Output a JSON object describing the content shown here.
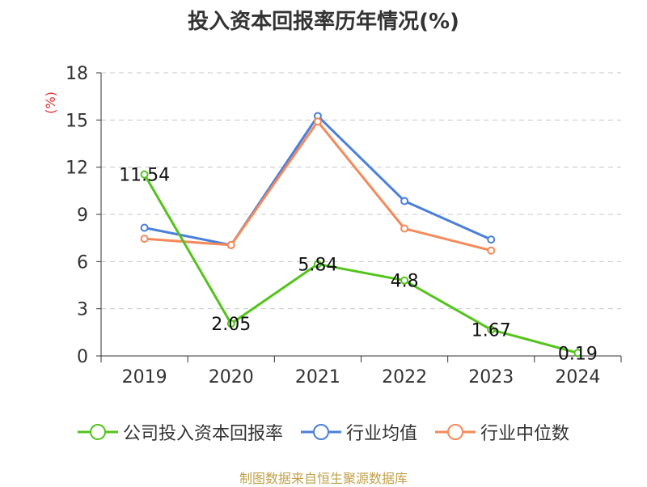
{
  "chart_data": {
    "type": "line",
    "title": "投入资本回报率历年情况(%)",
    "ylabel": "(%)",
    "xlabel": "",
    "categories": [
      "2019",
      "2020",
      "2021",
      "2022",
      "2023",
      "2024"
    ],
    "ylim": [
      0,
      18
    ],
    "yticks": [
      0,
      3,
      6,
      9,
      12,
      15,
      18
    ],
    "grid": true,
    "legend_position": "bottom",
    "series": [
      {
        "name": "公司投入资本回报率",
        "color": "#52c41a",
        "values": [
          11.54,
          2.05,
          5.84,
          4.8,
          1.67,
          0.19
        ],
        "labels": [
          "11.54",
          "2.05",
          "5.84",
          "4.8",
          "1.67",
          "0.19"
        ]
      },
      {
        "name": "行业均值",
        "color": "#4a7fdc",
        "values": [
          8.15,
          7.05,
          15.25,
          9.85,
          7.4,
          null
        ]
      },
      {
        "name": "行业中位数",
        "color": "#f5895a",
        "values": [
          7.45,
          7.05,
          14.9,
          8.1,
          6.7,
          null
        ]
      }
    ]
  },
  "source_note": "制图数据来自恒生聚源数据库"
}
